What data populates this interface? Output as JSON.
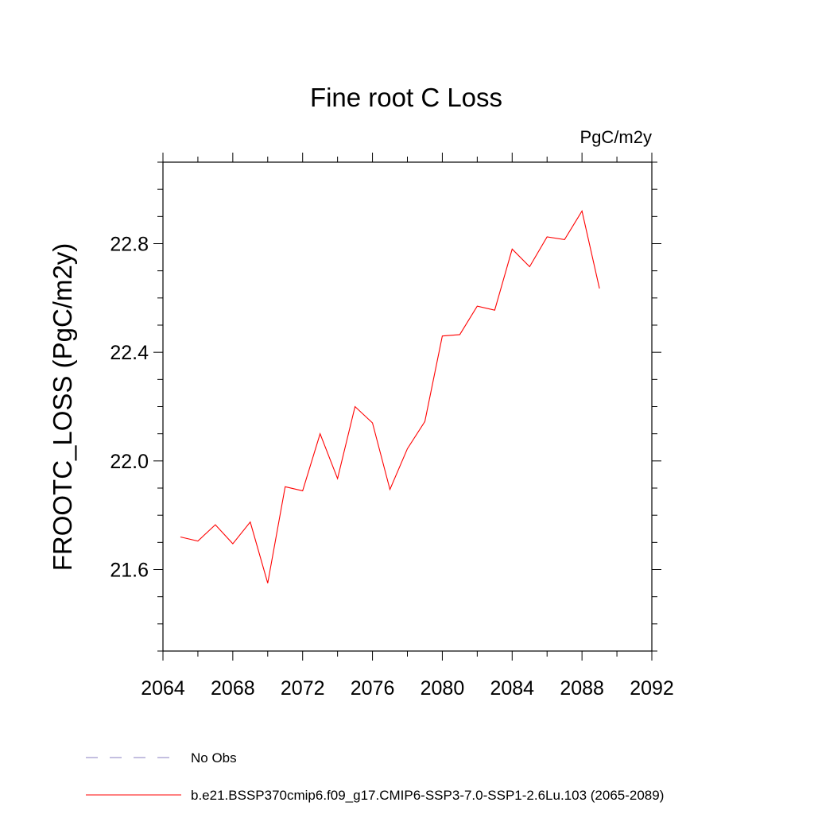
{
  "chart_data": {
    "type": "line",
    "title": "Fine root C Loss",
    "units_label": "PgC/m2y",
    "ylabel": "FROOTC_LOSS  (PgC/m2y)",
    "xlabel": "",
    "xlim": [
      2064,
      2092
    ],
    "ylim": [
      21.3,
      23.1
    ],
    "x_ticks": [
      2064,
      2068,
      2072,
      2076,
      2080,
      2084,
      2088,
      2092
    ],
    "x_tick_labels": [
      "2064",
      "2068",
      "2072",
      "2076",
      "2080",
      "2084",
      "2088",
      "2092"
    ],
    "y_ticks": [
      21.6,
      22.0,
      22.4,
      22.8
    ],
    "y_tick_labels": [
      "21.6",
      "22.0",
      "22.4",
      "22.8"
    ],
    "grid": false,
    "legend_placement": "bottom",
    "series": [
      {
        "name": "b.e21.BSSP370cmip6.f09_g17.CMIP6-SSP3-7.0-SSP1-2.6Lu.103 (2065-2089)",
        "color": "#ff0000",
        "x": [
          2065,
          2066,
          2067,
          2068,
          2069,
          2070,
          2071,
          2072,
          2073,
          2074,
          2075,
          2076,
          2077,
          2078,
          2079,
          2080,
          2081,
          2082,
          2083,
          2084,
          2085,
          2086,
          2087,
          2088,
          2089
        ],
        "y": [
          21.72,
          21.705,
          21.765,
          21.695,
          21.775,
          21.55,
          21.905,
          21.89,
          22.1,
          21.935,
          22.2,
          22.14,
          21.895,
          22.045,
          22.145,
          22.46,
          22.465,
          22.57,
          22.555,
          22.78,
          22.715,
          22.825,
          22.815,
          22.92,
          22.635
        ]
      }
    ],
    "legend": [
      {
        "label": "No Obs",
        "style": "dashed",
        "color": "#8a7fc0"
      },
      {
        "label": "b.e21.BSSP370cmip6.f09_g17.CMIP6-SSP3-7.0-SSP1-2.6Lu.103 (2065-2089)",
        "style": "solid",
        "color": "#ff0000"
      }
    ]
  }
}
